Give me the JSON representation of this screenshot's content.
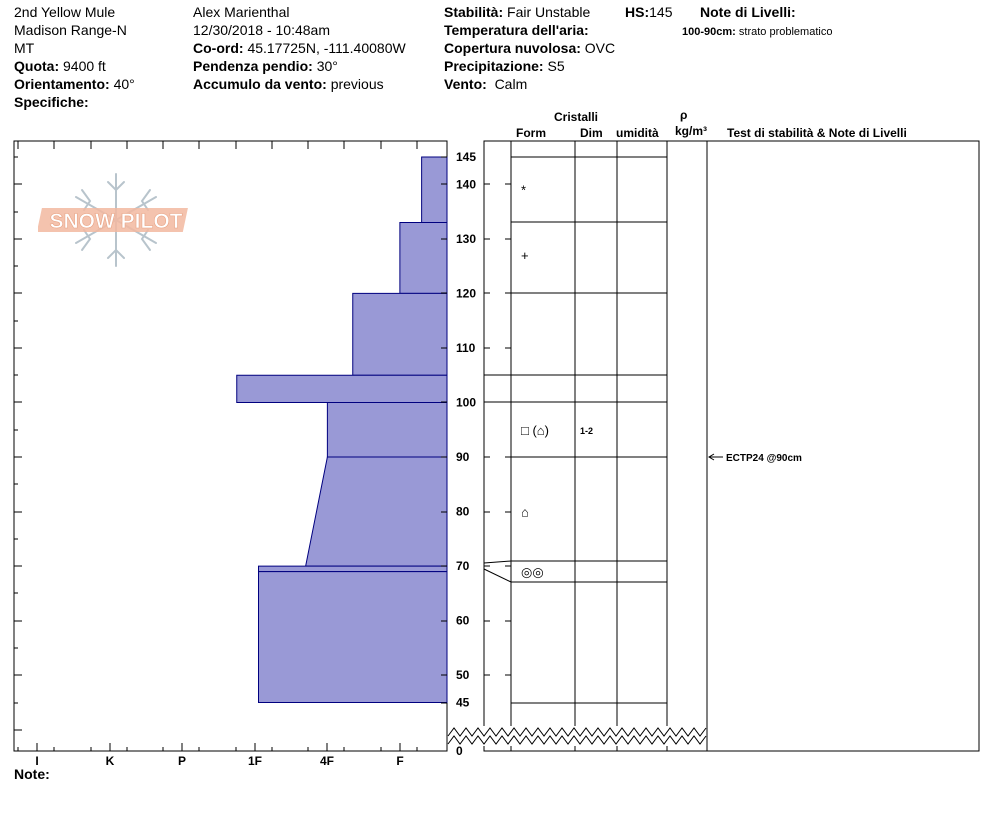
{
  "header": {
    "location": "2nd Yellow Mule",
    "range": "Madison Range-N",
    "state": "MT",
    "elevation_label": "Quota:",
    "elevation_value": "9400 ft",
    "aspect_label": "Orientamento:",
    "aspect_value": "40°",
    "specifics_label": "Specifiche:",
    "observer": "Alex Marienthal",
    "datetime": "12/30/2018 - 10:48am",
    "coord_label": "Co-ord:",
    "coord_value": "45.17725N, -111.40080W",
    "slope_label": "Pendenza pendio:",
    "slope_value": "30°",
    "wind_loading_label": "Accumulo da vento:",
    "wind_loading_value": "previous",
    "stability_label": "Stabilità:",
    "stability_value": "Fair Unstable",
    "hs_label": "HS:",
    "hs_value": "145",
    "air_temp_label": "Temperatura dell'aria:",
    "cloud_label": "Copertura nuvolosa:",
    "cloud_value": "OVC",
    "precip_label": "Precipitazione:",
    "precip_value": "S5",
    "wind_label": "Vento:",
    "wind_value": "Calm",
    "layer_notes_label": "Note di Livelli:",
    "layer_note_range": "100-90cm:",
    "layer_note_text": "strato problematico"
  },
  "columns": {
    "crystals": "Cristalli",
    "form": "Form",
    "dim": "Dim",
    "moisture": "umidità",
    "rho": "ρ",
    "density_unit": "kg/m³",
    "tests": "Test di stabilità & Note di Livelli"
  },
  "footer": {
    "notes_label": "Note:"
  },
  "logo_text": "SNOW PILOT",
  "colors": {
    "hardness_fill": "#9999d6",
    "hardness_stroke": "#00007f",
    "logo": "#f2b9a0",
    "flake": "#b8c4cc"
  },
  "chart_data": {
    "type": "bar",
    "title": "",
    "xlabel": "",
    "ylabel": "",
    "ylim": [
      0,
      145
    ],
    "hardness_ticks": [
      "I",
      "K",
      "P",
      "1F",
      "4F",
      "F"
    ],
    "y_tick_labels": [
      45,
      50,
      60,
      70,
      80,
      90,
      100,
      110,
      120,
      130,
      140,
      145
    ],
    "y_zero_label": "0",
    "hardness_scale_note": "value = hardness units (F=1, 4F=2, 1F=3, P=4, K=5, I=6)",
    "layers": [
      {
        "top": 145,
        "bottom": 133,
        "hardness": 0.35
      },
      {
        "top": 133,
        "bottom": 120,
        "hardness": 0.65
      },
      {
        "top": 120,
        "bottom": 105,
        "hardness": 1.3
      },
      {
        "top": 105,
        "bottom": 100,
        "hardness": 2.9
      },
      {
        "top": 100,
        "bottom": 90,
        "hardness": 1.65
      },
      {
        "top": 90,
        "bottom": 70,
        "hardness_top": 1.65,
        "hardness_bottom": 1.95
      },
      {
        "top": 70,
        "bottom": 69,
        "hardness": 2.6
      },
      {
        "top": 69,
        "bottom": 45,
        "hardness": 2.6
      }
    ],
    "grid_boundaries": [
      145,
      133,
      120,
      105,
      100,
      90,
      71,
      67,
      45
    ],
    "crystal_forms": [
      {
        "depth": 139,
        "symbol": "*"
      },
      {
        "depth": 127,
        "symbol": "+"
      },
      {
        "depth": 95,
        "symbol": "□ (⌂)",
        "dim": "1-2"
      },
      {
        "depth": 80,
        "symbol": "⌂"
      },
      {
        "depth": 69,
        "symbol": "◎◎"
      }
    ],
    "tests": [
      {
        "depth": 90,
        "label": "ECTP24 @90cm"
      }
    ]
  }
}
